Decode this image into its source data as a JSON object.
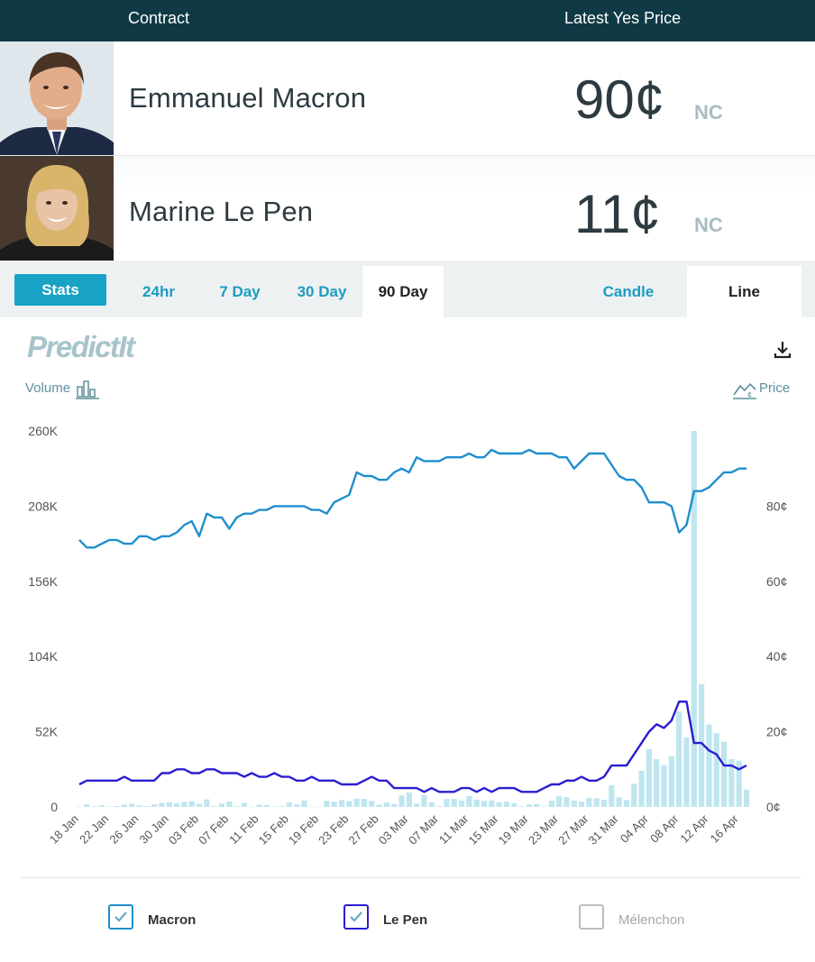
{
  "header": {
    "contract_label": "Contract",
    "price_label": "Latest Yes Price"
  },
  "contracts": [
    {
      "name": "Emmanuel Macron",
      "price": "90¢",
      "change": "NC"
    },
    {
      "name": "Marine Le Pen",
      "price": "11¢",
      "change": "NC"
    }
  ],
  "tabs": {
    "stats": "Stats",
    "t24": "24hr",
    "t7": "7 Day",
    "t30": "30 Day",
    "t90": "90 Day",
    "candle": "Candle",
    "line": "Line"
  },
  "chart_header": {
    "logo": "PredictIt",
    "volume_label": "Volume",
    "price_label": "Price"
  },
  "legend": {
    "macron": "Macron",
    "lepen": "Le Pen",
    "melenchon": "Mélenchon"
  },
  "colors": {
    "macron": "#1f8fcd",
    "lepen": "#2b1ed1",
    "melenchon": "#bdbdbd",
    "volume": "#bfe6ef",
    "header": "#0f3a45",
    "accent": "#18a3c6"
  },
  "chart_data": {
    "type": "line",
    "left_axis": {
      "ticks": [
        0,
        52000,
        104000,
        156000,
        208000,
        260000
      ],
      "tick_labels": [
        "0",
        "52K",
        "104K",
        "156K",
        "208K",
        "260K"
      ],
      "range": [
        0,
        260000
      ]
    },
    "right_axis": {
      "ticks": [
        0,
        20,
        40,
        60,
        80
      ],
      "tick_labels": [
        "0¢",
        "20¢",
        "40¢",
        "60¢",
        "80¢"
      ],
      "range": [
        0,
        100
      ]
    },
    "x_tick_labels": [
      "18 Jan",
      "22 Jan",
      "26 Jan",
      "30 Jan",
      "03 Feb",
      "07 Feb",
      "11 Feb",
      "15 Feb",
      "19 Feb",
      "23 Feb",
      "27 Feb",
      "03 Mar",
      "07 Mar",
      "11 Mar",
      "15 Mar",
      "19 Mar",
      "23 Mar",
      "27 Mar",
      "31 Mar",
      "04 Apr",
      "08 Apr",
      "12 Apr",
      "16 Apr"
    ],
    "series": [
      {
        "name": "Macron",
        "axis": "right",
        "values": [
          71,
          69,
          69,
          70,
          71,
          71,
          70,
          70,
          72,
          72,
          71,
          72,
          72,
          73,
          75,
          76,
          72,
          78,
          77,
          77,
          74,
          77,
          78,
          78,
          79,
          79,
          80,
          80,
          80,
          80,
          80,
          79,
          79,
          78,
          81,
          82,
          83,
          89,
          88,
          88,
          87,
          87,
          89,
          90,
          89,
          93,
          92,
          92,
          92,
          93,
          93,
          93,
          94,
          93,
          93,
          95,
          94,
          94,
          94,
          94,
          95,
          94,
          94,
          94,
          93,
          93,
          90,
          92,
          94,
          94,
          94,
          91,
          88,
          87,
          87,
          85,
          81,
          81,
          81,
          80,
          73,
          75,
          84,
          84,
          85,
          87,
          89,
          89,
          90,
          90
        ]
      },
      {
        "name": "Le Pen",
        "axis": "right",
        "values": [
          6,
          7,
          7,
          7,
          7,
          7,
          8,
          7,
          7,
          7,
          7,
          9,
          9,
          10,
          10,
          9,
          9,
          10,
          10,
          9,
          9,
          9,
          8,
          9,
          8,
          8,
          9,
          8,
          8,
          7,
          7,
          8,
          7,
          7,
          7,
          6,
          6,
          6,
          7,
          8,
          7,
          7,
          5,
          5,
          5,
          5,
          4,
          5,
          4,
          4,
          4,
          5,
          5,
          4,
          5,
          4,
          5,
          5,
          5,
          4,
          4,
          4,
          5,
          6,
          6,
          7,
          7,
          8,
          7,
          7,
          8,
          11,
          11,
          11,
          14,
          17,
          20,
          22,
          21,
          23,
          28,
          28,
          17,
          17,
          15,
          14,
          11,
          11,
          10,
          11
        ]
      },
      {
        "name": "Volume",
        "axis": "left",
        "values": [
          400,
          1800,
          500,
          1200,
          300,
          600,
          1500,
          2200,
          1000,
          600,
          1800,
          2700,
          3200,
          2500,
          3500,
          4000,
          2200,
          5200,
          600,
          2300,
          3800,
          500,
          2700,
          200,
          1500,
          1400,
          300,
          700,
          3200,
          1800,
          4500,
          300,
          200,
          4200,
          3600,
          4700,
          3900,
          5800,
          5600,
          4200,
          1500,
          3100,
          2000,
          8000,
          10000,
          2200,
          8200,
          3300,
          600,
          5500,
          5600,
          4400,
          7500,
          5000,
          4300,
          4400,
          3300,
          3700,
          2500,
          500,
          1700,
          2100,
          400,
          4400,
          7600,
          6800,
          4400,
          3700,
          6200,
          6000,
          4900,
          15000,
          6700,
          4800,
          16000,
          25000,
          40000,
          33000,
          29000,
          35000,
          66000,
          48000,
          260000,
          85000,
          57000,
          51000,
          45000,
          33000,
          32000,
          12000
        ]
      }
    ]
  }
}
